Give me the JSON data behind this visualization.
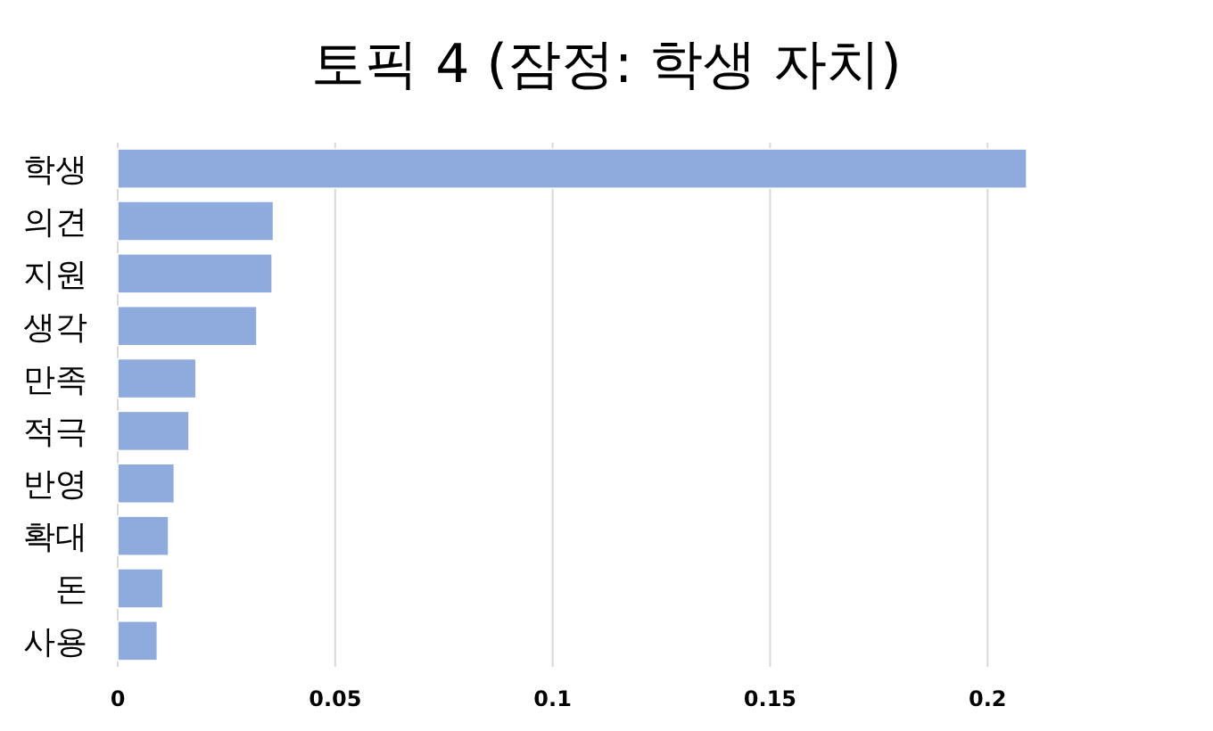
{
  "chart_data": {
    "type": "bar",
    "orientation": "horizontal",
    "title": "토픽 4 (잠정: 학생 자치)",
    "categories": [
      "학생",
      "의견",
      "지원",
      "생각",
      "만족",
      "적극",
      "반영",
      "확대",
      "돈",
      "사용"
    ],
    "values": [
      0.209,
      0.0358,
      0.0355,
      0.032,
      0.018,
      0.0164,
      0.013,
      0.0117,
      0.0104,
      0.0091
    ],
    "color": "#8faadc",
    "xlim": [
      0,
      0.21
    ],
    "xticks": [
      0,
      0.05,
      0.1,
      0.15,
      0.2
    ],
    "grid": "x"
  }
}
